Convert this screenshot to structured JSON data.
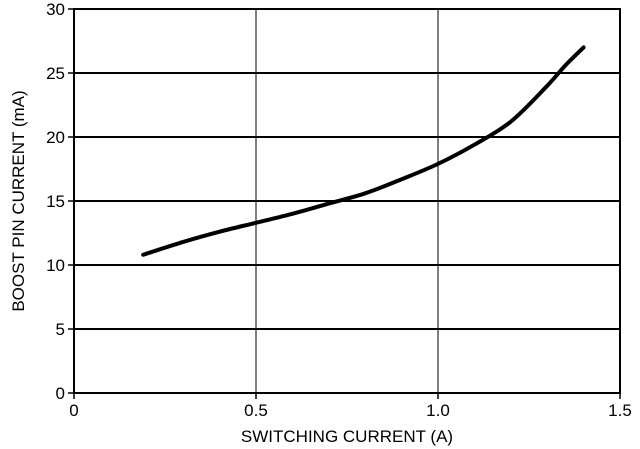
{
  "chart_data": {
    "type": "line",
    "xlabel": "SWITCHING CURRENT (A)",
    "ylabel": "BOOST PIN CURRENT (mA)",
    "xlim": [
      0,
      1.5
    ],
    "ylim": [
      0,
      30
    ],
    "xticks": [
      0,
      0.5,
      1.0,
      1.5
    ],
    "xtick_labels": [
      "0",
      "0.5",
      "1.0",
      "1.5"
    ],
    "yticks": [
      0,
      5,
      10,
      15,
      20,
      25,
      30
    ],
    "ytick_labels": [
      "0",
      "5",
      "10",
      "15",
      "20",
      "25",
      "30"
    ],
    "grid": true,
    "series": [
      {
        "color": "#000000",
        "x": [
          0.19,
          0.3,
          0.4,
          0.5,
          0.6,
          0.7,
          0.8,
          0.9,
          1.0,
          1.1,
          1.2,
          1.3,
          1.35,
          1.4
        ],
        "y": [
          10.8,
          11.8,
          12.6,
          13.3,
          14.0,
          14.8,
          15.6,
          16.7,
          17.9,
          19.4,
          21.2,
          24.0,
          25.6,
          27.0
        ]
      }
    ]
  }
}
